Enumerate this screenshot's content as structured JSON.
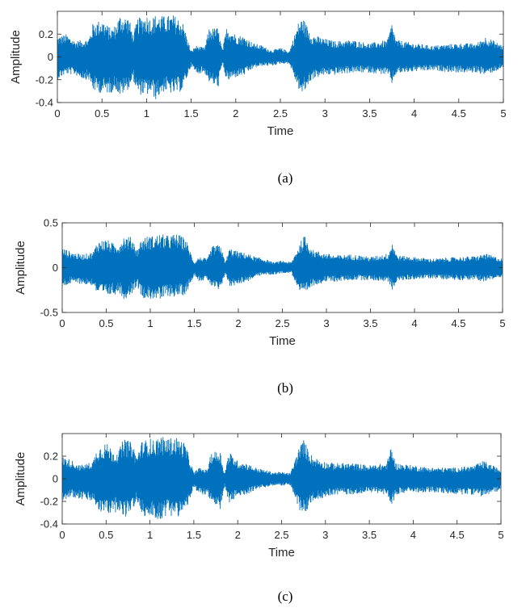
{
  "colors": {
    "signal": "#0072BD",
    "axis": "#262626"
  },
  "chart_data": [
    {
      "type": "line",
      "caption": "(a)",
      "xlabel": "Time",
      "ylabel": "Amplitude",
      "xlim": [
        0,
        5
      ],
      "ylim": [
        -0.4,
        0.4
      ],
      "xticks": [
        "0",
        "0.5",
        "1",
        "1.5",
        "2",
        "2.5",
        "3",
        "3.5",
        "4",
        "4.5",
        "5"
      ],
      "yticks": [
        "-0.4",
        "-0.2",
        "0",
        "0.2"
      ],
      "grid": false,
      "envelope": {
        "x": [
          0,
          0.1,
          0.2,
          0.3,
          0.35,
          0.4,
          0.5,
          0.6,
          0.65,
          0.7,
          0.8,
          0.85,
          0.9,
          1.0,
          1.05,
          1.1,
          1.2,
          1.3,
          1.4,
          1.5,
          1.55,
          1.65,
          1.7,
          1.8,
          1.85,
          1.9,
          2.0,
          2.1,
          2.2,
          2.3,
          2.4,
          2.5,
          2.6,
          2.7,
          2.75,
          2.85,
          3.0,
          3.1,
          3.3,
          3.5,
          3.7,
          3.75,
          3.8,
          4.0,
          4.2,
          4.5,
          4.7,
          4.8,
          5.0
        ],
        "upper": [
          0.18,
          0.2,
          0.14,
          0.15,
          0.16,
          0.3,
          0.33,
          0.25,
          0.28,
          0.37,
          0.35,
          0.2,
          0.34,
          0.37,
          0.34,
          0.37,
          0.36,
          0.37,
          0.32,
          0.05,
          0.1,
          0.08,
          0.25,
          0.26,
          0.06,
          0.27,
          0.2,
          0.18,
          0.12,
          0.1,
          0.06,
          0.08,
          0.05,
          0.3,
          0.35,
          0.2,
          0.16,
          0.14,
          0.15,
          0.12,
          0.15,
          0.3,
          0.15,
          0.12,
          0.1,
          0.12,
          0.12,
          0.18,
          0.1
        ],
        "lower": [
          -0.2,
          -0.15,
          -0.16,
          -0.2,
          -0.2,
          -0.3,
          -0.32,
          -0.32,
          -0.28,
          -0.35,
          -0.28,
          -0.2,
          -0.33,
          -0.34,
          -0.32,
          -0.38,
          -0.3,
          -0.33,
          -0.3,
          -0.08,
          -0.15,
          -0.14,
          -0.22,
          -0.28,
          -0.06,
          -0.22,
          -0.18,
          -0.16,
          -0.1,
          -0.08,
          -0.08,
          -0.06,
          -0.06,
          -0.28,
          -0.34,
          -0.2,
          -0.16,
          -0.16,
          -0.14,
          -0.14,
          -0.16,
          -0.24,
          -0.15,
          -0.13,
          -0.12,
          -0.14,
          -0.14,
          -0.16,
          -0.1
        ]
      }
    },
    {
      "type": "line",
      "caption": "(b)",
      "xlabel": "Time",
      "ylabel": "Amplitude",
      "xlim": [
        0,
        5
      ],
      "ylim": [
        -0.5,
        0.5
      ],
      "xticks": [
        "0",
        "0.5",
        "1",
        "1.5",
        "2",
        "2.5",
        "3",
        "3.5",
        "4",
        "4.5",
        "5"
      ],
      "yticks": [
        "-0.5",
        "0",
        "0.5"
      ],
      "grid": false,
      "envelope": {
        "x": [
          0,
          0.1,
          0.2,
          0.3,
          0.35,
          0.4,
          0.5,
          0.6,
          0.65,
          0.7,
          0.8,
          0.85,
          0.9,
          1.0,
          1.05,
          1.1,
          1.2,
          1.3,
          1.4,
          1.5,
          1.55,
          1.65,
          1.7,
          1.8,
          1.85,
          1.9,
          2.0,
          2.1,
          2.2,
          2.3,
          2.4,
          2.5,
          2.6,
          2.7,
          2.75,
          2.85,
          3.0,
          3.1,
          3.3,
          3.5,
          3.7,
          3.75,
          3.8,
          4.0,
          4.2,
          4.5,
          4.7,
          4.8,
          5.0
        ],
        "upper": [
          0.22,
          0.18,
          0.15,
          0.16,
          0.18,
          0.3,
          0.32,
          0.26,
          0.28,
          0.36,
          0.34,
          0.2,
          0.33,
          0.36,
          0.35,
          0.38,
          0.36,
          0.38,
          0.33,
          0.06,
          0.12,
          0.1,
          0.24,
          0.26,
          0.06,
          0.22,
          0.18,
          0.16,
          0.12,
          0.1,
          0.06,
          0.08,
          0.06,
          0.28,
          0.36,
          0.2,
          0.16,
          0.14,
          0.15,
          0.12,
          0.16,
          0.3,
          0.14,
          0.12,
          0.1,
          0.12,
          0.13,
          0.16,
          0.1
        ],
        "lower": [
          -0.22,
          -0.18,
          -0.18,
          -0.2,
          -0.2,
          -0.3,
          -0.32,
          -0.3,
          -0.28,
          -0.36,
          -0.28,
          -0.2,
          -0.33,
          -0.36,
          -0.34,
          -0.38,
          -0.32,
          -0.33,
          -0.3,
          -0.08,
          -0.15,
          -0.14,
          -0.22,
          -0.28,
          -0.06,
          -0.22,
          -0.18,
          -0.16,
          -0.1,
          -0.08,
          -0.08,
          -0.06,
          -0.06,
          -0.28,
          -0.32,
          -0.2,
          -0.16,
          -0.16,
          -0.14,
          -0.14,
          -0.16,
          -0.25,
          -0.15,
          -0.13,
          -0.12,
          -0.14,
          -0.14,
          -0.16,
          -0.1
        ]
      }
    },
    {
      "type": "line",
      "caption": "(c)",
      "xlabel": "Time",
      "ylabel": "Amplitude",
      "xlim": [
        0,
        5
      ],
      "ylim": [
        -0.4,
        0.4
      ],
      "xticks": [
        "0",
        "0.5",
        "1",
        "1.5",
        "2",
        "2.5",
        "3",
        "3.5",
        "4",
        "4.5",
        "5"
      ],
      "yticks": [
        "-0.4",
        "-0.2",
        "0",
        "0.2"
      ],
      "grid": false,
      "envelope": {
        "x": [
          0,
          0.1,
          0.2,
          0.3,
          0.35,
          0.4,
          0.5,
          0.6,
          0.65,
          0.7,
          0.8,
          0.85,
          0.9,
          1.0,
          1.05,
          1.1,
          1.2,
          1.3,
          1.4,
          1.5,
          1.55,
          1.65,
          1.7,
          1.8,
          1.85,
          1.9,
          2.0,
          2.1,
          2.2,
          2.3,
          2.4,
          2.5,
          2.6,
          2.7,
          2.75,
          2.85,
          3.0,
          3.1,
          3.3,
          3.5,
          3.7,
          3.75,
          3.8,
          4.0,
          4.2,
          4.5,
          4.7,
          4.8,
          5.0
        ],
        "upper": [
          0.2,
          0.17,
          0.12,
          0.14,
          0.16,
          0.28,
          0.32,
          0.24,
          0.26,
          0.36,
          0.32,
          0.2,
          0.33,
          0.36,
          0.34,
          0.38,
          0.36,
          0.37,
          0.32,
          0.05,
          0.1,
          0.08,
          0.24,
          0.25,
          0.05,
          0.24,
          0.16,
          0.14,
          0.1,
          0.08,
          0.06,
          0.06,
          0.05,
          0.28,
          0.35,
          0.2,
          0.15,
          0.14,
          0.14,
          0.12,
          0.14,
          0.3,
          0.14,
          0.12,
          0.1,
          0.1,
          0.12,
          0.16,
          0.08
        ],
        "lower": [
          -0.2,
          -0.16,
          -0.18,
          -0.2,
          -0.2,
          -0.28,
          -0.32,
          -0.3,
          -0.28,
          -0.36,
          -0.28,
          -0.2,
          -0.32,
          -0.36,
          -0.34,
          -0.38,
          -0.32,
          -0.34,
          -0.3,
          -0.08,
          -0.14,
          -0.14,
          -0.22,
          -0.3,
          -0.06,
          -0.22,
          -0.16,
          -0.14,
          -0.1,
          -0.08,
          -0.06,
          -0.06,
          -0.06,
          -0.28,
          -0.34,
          -0.2,
          -0.16,
          -0.14,
          -0.14,
          -0.12,
          -0.14,
          -0.26,
          -0.14,
          -0.12,
          -0.12,
          -0.14,
          -0.14,
          -0.16,
          -0.1
        ]
      }
    }
  ]
}
